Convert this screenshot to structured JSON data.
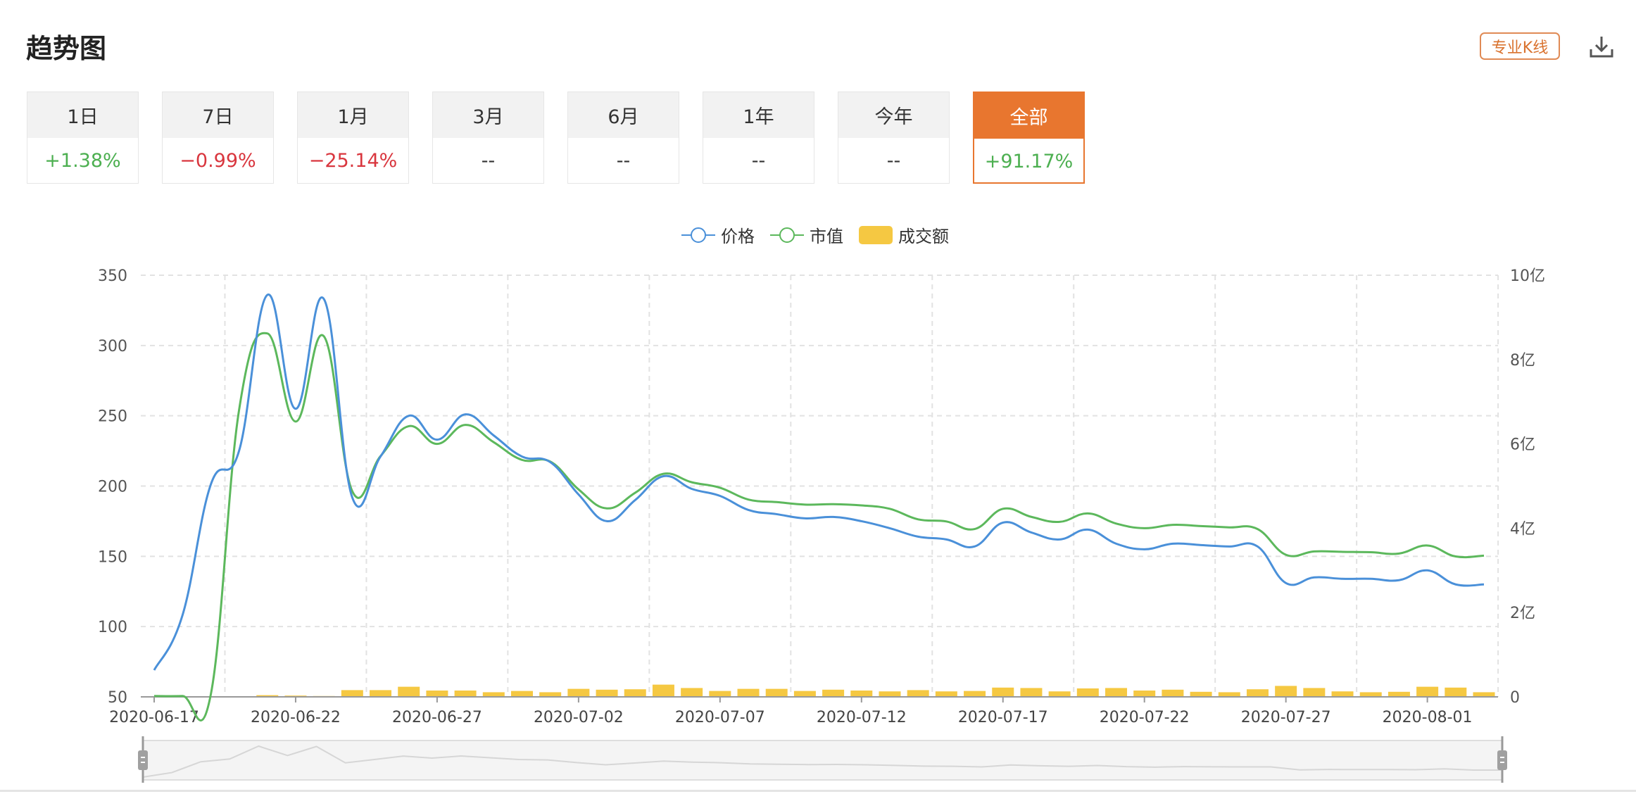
{
  "header": {
    "title": "趋势图",
    "pro_kline_label": "专业K线",
    "download_icon": "download-icon"
  },
  "periods": [
    {
      "label": "1日",
      "change": "+1.38%",
      "trend": "up"
    },
    {
      "label": "7日",
      "change": "−0.99%",
      "trend": "down"
    },
    {
      "label": "1月",
      "change": "−25.14%",
      "trend": "down"
    },
    {
      "label": "3月",
      "change": "--",
      "trend": "none"
    },
    {
      "label": "6月",
      "change": "--",
      "trend": "none"
    },
    {
      "label": "1年",
      "change": "--",
      "trend": "none"
    },
    {
      "label": "今年",
      "change": "--",
      "trend": "none"
    },
    {
      "label": "全部",
      "change": "+91.17%",
      "trend": "up",
      "active": true
    }
  ],
  "colors": {
    "price": "#4a90d9",
    "market_cap": "#5cb85c",
    "volume": "#f5c842",
    "accent": "#e8762f",
    "up": "#4caf50",
    "down": "#d9363e"
  },
  "chart_data": {
    "type": "line",
    "legend": {
      "position": "top-center",
      "items": [
        "价格",
        "市值",
        "成交额"
      ]
    },
    "x": [
      "2020-06-17",
      "2020-06-18",
      "2020-06-19",
      "2020-06-20",
      "2020-06-21",
      "2020-06-22",
      "2020-06-23",
      "2020-06-24",
      "2020-06-25",
      "2020-06-26",
      "2020-06-27",
      "2020-06-28",
      "2020-06-29",
      "2020-06-30",
      "2020-07-01",
      "2020-07-02",
      "2020-07-03",
      "2020-07-04",
      "2020-07-05",
      "2020-07-06",
      "2020-07-07",
      "2020-07-08",
      "2020-07-09",
      "2020-07-10",
      "2020-07-11",
      "2020-07-12",
      "2020-07-13",
      "2020-07-14",
      "2020-07-15",
      "2020-07-16",
      "2020-07-17",
      "2020-07-18",
      "2020-07-19",
      "2020-07-20",
      "2020-07-21",
      "2020-07-22",
      "2020-07-23",
      "2020-07-24",
      "2020-07-25",
      "2020-07-26",
      "2020-07-27",
      "2020-07-28",
      "2020-07-29",
      "2020-07-30",
      "2020-07-31",
      "2020-08-01",
      "2020-08-02",
      "2020-08-03"
    ],
    "x_ticks": [
      "2020-06-17",
      "2020-06-22",
      "2020-06-27",
      "2020-07-02",
      "2020-07-07",
      "2020-07-12",
      "2020-07-17",
      "2020-07-22",
      "2020-07-27",
      "2020-08-01"
    ],
    "y_left": {
      "min": 50,
      "max": 350,
      "ticks": [
        "350",
        "300",
        "250",
        "200",
        "150",
        "100",
        "50"
      ]
    },
    "y_right": {
      "min": 0,
      "max": 10,
      "unit": "亿",
      "ticks": [
        "10亿",
        "8亿",
        "6亿",
        "4亿",
        "2亿",
        "0"
      ]
    },
    "grid": true,
    "series": [
      {
        "name": "价格",
        "type": "line",
        "axis": "left",
        "smooth": true,
        "values": [
          69,
          108,
          201,
          225,
          336,
          255,
          333,
          192,
          221,
          250,
          233,
          251,
          236,
          221,
          217,
          194,
          175,
          190,
          207,
          198,
          193,
          183,
          180,
          177,
          178,
          175,
          170,
          164,
          162,
          157,
          174,
          167,
          162,
          169,
          159,
          155,
          159,
          158,
          157,
          157,
          131,
          135,
          134,
          134,
          133,
          140,
          130,
          130
        ]
      },
      {
        "name": "市值",
        "type": "line",
        "axis": "right",
        "smooth": true,
        "values": [
          0.02,
          0.02,
          0.05,
          6.8,
          8.62,
          6.53,
          8.55,
          4.88,
          5.71,
          6.42,
          6.0,
          6.45,
          6.04,
          5.62,
          5.58,
          4.92,
          4.47,
          4.84,
          5.29,
          5.09,
          4.96,
          4.68,
          4.62,
          4.56,
          4.57,
          4.54,
          4.46,
          4.21,
          4.16,
          3.98,
          4.46,
          4.27,
          4.15,
          4.35,
          4.11,
          4.0,
          4.08,
          4.05,
          4.02,
          3.98,
          3.37,
          3.45,
          3.44,
          3.43,
          3.4,
          3.59,
          3.33,
          3.35
        ]
      },
      {
        "name": "成交额",
        "type": "bar",
        "axis": "right",
        "values": [
          0,
          0,
          0.01,
          0.01,
          0.04,
          0.03,
          0.02,
          0.16,
          0.16,
          0.24,
          0.15,
          0.15,
          0.11,
          0.14,
          0.11,
          0.19,
          0.17,
          0.18,
          0.29,
          0.21,
          0.14,
          0.19,
          0.19,
          0.14,
          0.17,
          0.15,
          0.13,
          0.16,
          0.13,
          0.14,
          0.22,
          0.21,
          0.13,
          0.2,
          0.21,
          0.15,
          0.17,
          0.12,
          0.11,
          0.18,
          0.26,
          0.21,
          0.13,
          0.11,
          0.12,
          0.24,
          0.22,
          0.11
        ]
      }
    ],
    "data_zoom": {
      "start": 0,
      "end": 100
    }
  }
}
